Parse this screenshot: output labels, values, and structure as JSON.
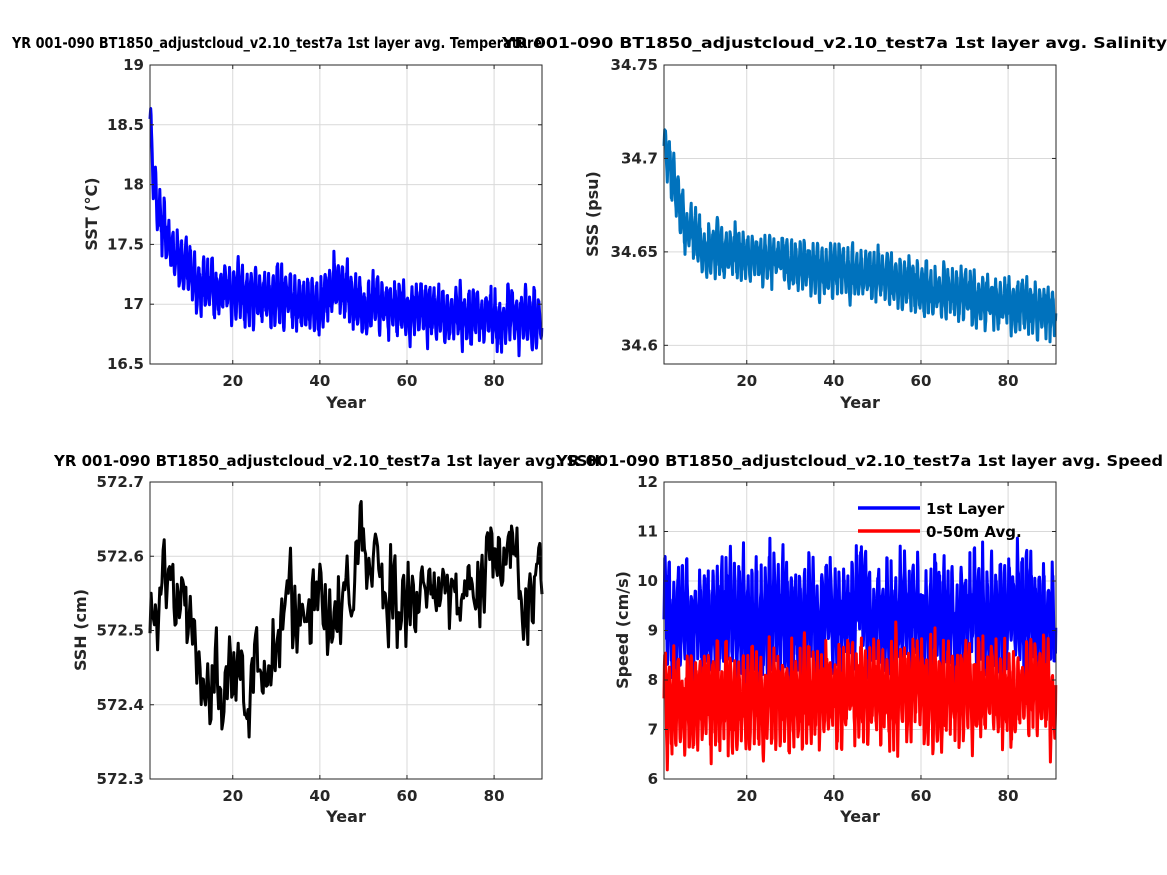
{
  "chart_data": [
    {
      "type": "line",
      "title": "YR 001-090 BT1850_adjustcloud_v2.10_test7a 1st layer avg. Temperature",
      "xlabel": "Year",
      "ylabel": "SST (°C)",
      "xlim": [
        1,
        91
      ],
      "ylim": [
        16.5,
        19
      ],
      "xticks": [
        20,
        40,
        60,
        80
      ],
      "yticks": [
        16.5,
        17,
        17.5,
        18,
        18.5,
        19
      ],
      "ytick_labels": [
        "16.5",
        "17",
        "17.5",
        "18",
        "18.5",
        "19"
      ],
      "grid": true,
      "series": [
        {
          "color": "#0000ff",
          "x_start": 1,
          "x_step": 0.0833,
          "samples_per_year": 12,
          "amplitude": 0.18,
          "noise": 0.05,
          "trend": [
            [
              1,
              18.5
            ],
            [
              2,
              18.0
            ],
            [
              3,
              17.75
            ],
            [
              5,
              17.55
            ],
            [
              8,
              17.35
            ],
            [
              12,
              17.15
            ],
            [
              20,
              17.08
            ],
            [
              30,
              17.05
            ],
            [
              40,
              17.02
            ],
            [
              45,
              17.15
            ],
            [
              50,
              16.98
            ],
            [
              60,
              16.95
            ],
            [
              70,
              16.92
            ],
            [
              80,
              16.9
            ],
            [
              91,
              16.85
            ]
          ]
        }
      ]
    },
    {
      "type": "line",
      "title": "YR 001-090 BT1850_adjustcloud_v2.10_test7a 1st layer avg. Salinity",
      "xlabel": "Year",
      "ylabel": "SSS (psu)",
      "xlim": [
        1,
        91
      ],
      "ylim": [
        34.59,
        34.75
      ],
      "xticks": [
        20,
        40,
        60,
        80
      ],
      "yticks": [
        34.6,
        34.65,
        34.7,
        34.75
      ],
      "ytick_labels": [
        "34.6",
        "34.65",
        "34.7",
        "34.75"
      ],
      "grid": true,
      "series": [
        {
          "color": "#0072bd",
          "x_start": 1,
          "x_step": 0.0833,
          "samples_per_year": 12,
          "amplitude": 0.011,
          "noise": 0.003,
          "trend": [
            [
              1,
              34.705
            ],
            [
              3,
              34.69
            ],
            [
              6,
              34.665
            ],
            [
              10,
              34.652
            ],
            [
              20,
              34.648
            ],
            [
              30,
              34.645
            ],
            [
              40,
              34.64
            ],
            [
              50,
              34.638
            ],
            [
              60,
              34.63
            ],
            [
              70,
              34.625
            ],
            [
              80,
              34.622
            ],
            [
              91,
              34.617
            ]
          ]
        }
      ]
    },
    {
      "type": "line",
      "title": "YR 001-090 BT1850_adjustcloud_v2.10_test7a 1st layer avg. SSH",
      "xlabel": "Year",
      "ylabel": "SSH (cm)",
      "xlim": [
        1,
        91
      ],
      "ylim": [
        572.3,
        572.7
      ],
      "xticks": [
        20,
        40,
        60,
        80
      ],
      "yticks": [
        572.3,
        572.4,
        572.5,
        572.6,
        572.7
      ],
      "ytick_labels": [
        "572.3",
        "572.4",
        "572.5",
        "572.6",
        "572.7"
      ],
      "grid": true,
      "series": [
        {
          "color": "#000000",
          "x_start": 1,
          "x_step": 0.25,
          "samples_per_year": 4,
          "amplitude": 0.02,
          "noise": 0.04,
          "trend": [
            [
              1,
              572.49
            ],
            [
              3,
              572.56
            ],
            [
              6,
              572.6
            ],
            [
              8,
              572.52
            ],
            [
              12,
              572.46
            ],
            [
              18,
              572.42
            ],
            [
              22,
              572.4
            ],
            [
              26,
              572.47
            ],
            [
              30,
              572.5
            ],
            [
              35,
              572.53
            ],
            [
              40,
              572.56
            ],
            [
              45,
              572.55
            ],
            [
              50,
              572.6
            ],
            [
              55,
              572.58
            ],
            [
              60,
              572.55
            ],
            [
              65,
              572.56
            ],
            [
              70,
              572.56
            ],
            [
              75,
              572.55
            ],
            [
              80,
              572.58
            ],
            [
              85,
              572.6
            ],
            [
              91,
              572.56
            ]
          ]
        }
      ]
    },
    {
      "type": "line",
      "title": "YR 001-090 BT1850_adjustcloud_v2.10_test7a 1st layer avg. Speed",
      "xlabel": "Year",
      "ylabel": "Speed (cm/s)",
      "xlim": [
        1,
        91
      ],
      "ylim": [
        6,
        12
      ],
      "xticks": [
        20,
        40,
        60,
        80
      ],
      "yticks": [
        6,
        7,
        8,
        9,
        10,
        11,
        12
      ],
      "ytick_labels": [
        "6",
        "7",
        "8",
        "9",
        "10",
        "11",
        "12"
      ],
      "grid": true,
      "legend": {
        "location": "top-right",
        "entries": [
          "1st Layer",
          "0-50m Avg."
        ]
      },
      "series": [
        {
          "name": "1st Layer",
          "color": "#0000ff",
          "x_start": 1,
          "x_step": 0.0833,
          "samples_per_year": 12,
          "amplitude": 0.9,
          "noise": 0.3,
          "trend": [
            [
              1,
              9.3
            ],
            [
              10,
              9.2
            ],
            [
              20,
              9.15
            ],
            [
              40,
              9.25
            ],
            [
              60,
              9.3
            ],
            [
              80,
              9.3
            ],
            [
              91,
              9.3
            ]
          ]
        },
        {
          "name": "0-50m Avg.",
          "color": "#ff0000",
          "x_start": 1,
          "x_step": 0.0833,
          "samples_per_year": 12,
          "amplitude": 0.8,
          "noise": 0.25,
          "trend": [
            [
              1,
              7.6
            ],
            [
              10,
              7.6
            ],
            [
              20,
              7.6
            ],
            [
              40,
              7.75
            ],
            [
              60,
              7.8
            ],
            [
              80,
              7.8
            ],
            [
              91,
              7.75
            ]
          ]
        }
      ]
    }
  ]
}
